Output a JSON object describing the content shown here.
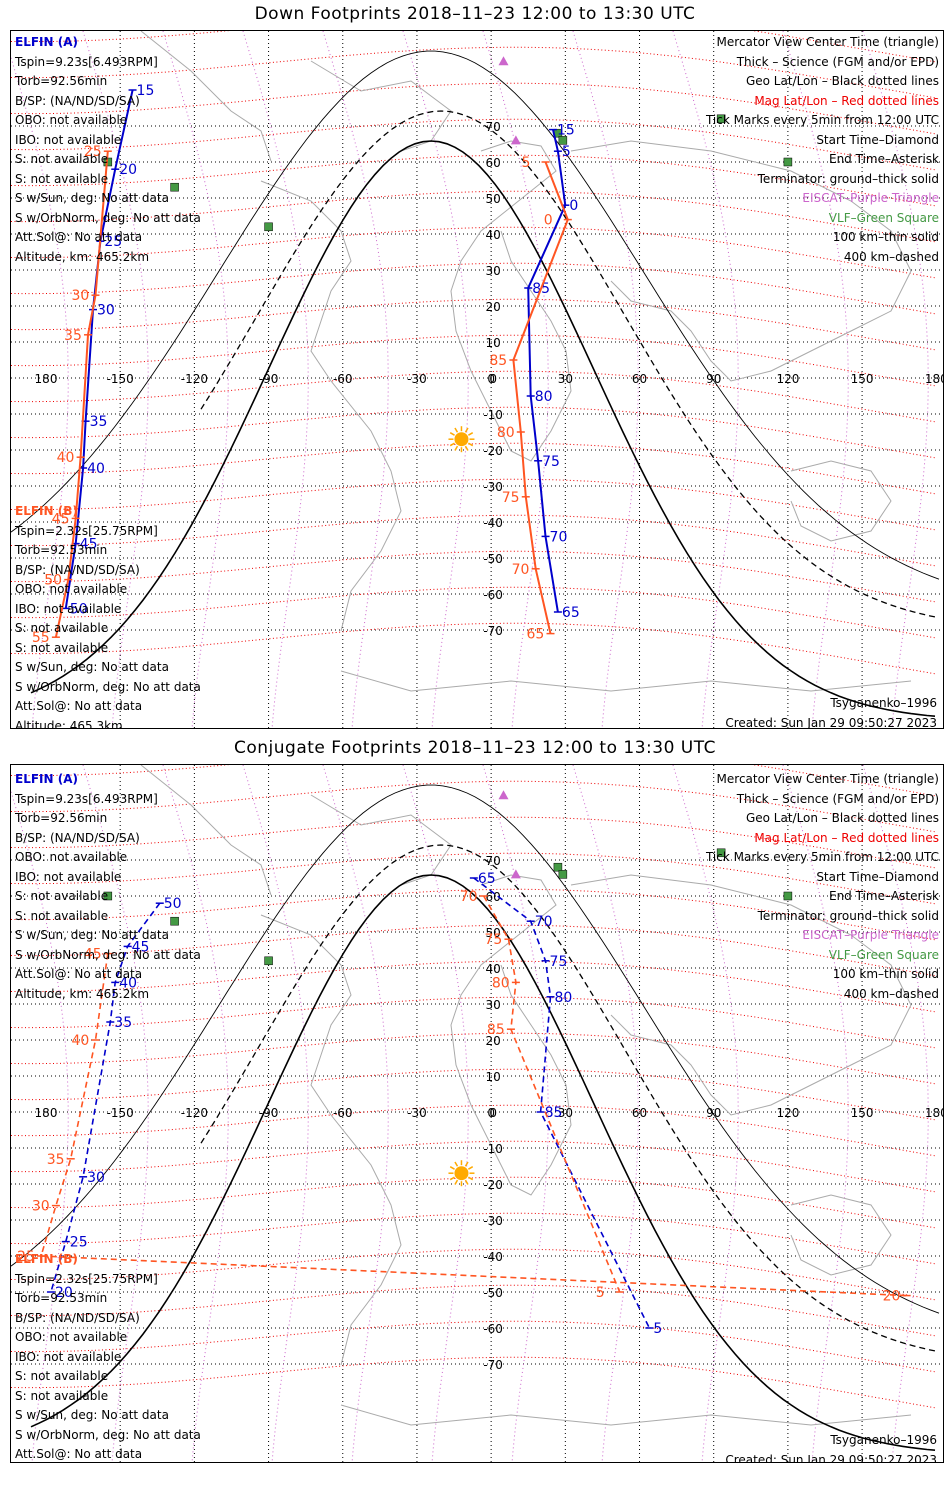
{
  "colors": {
    "elfin_a": "#0000cc",
    "elfin_b": "#ff5522",
    "mag": "#ee0000",
    "geo": "#000000",
    "purple": "#cc66cc",
    "green": "#449944",
    "sun": "#ffaa00"
  },
  "panels": [
    {
      "title": "Down Footprints 2018–11–23 12:00 to 13:30 UTC",
      "elfin_a": {
        "name": "ELFIN (A)",
        "lines": [
          "Tspin=9.23s[6.493RPM]",
          "Torb=92.56min",
          "B/SP: (NA/ND/SD/SA)",
          "OBO: not available",
          "IBO: not available",
          "S: not available",
          "S: not available",
          "S w/Sun, deg: No att data",
          "S w/OrbNorm, deg: No att data",
          "Att.Sol@: No att data",
          "Altitude, km: 465.2km"
        ]
      },
      "elfin_b": {
        "name": "ELFIN (B)",
        "lines": [
          "Tspin=2.32s[25.75RPM]",
          "Torb=92.53min",
          "B/SP: (NA/ND/SD/SA)",
          "OBO: not available",
          "IBO: not available",
          "S: not available",
          "S: not available",
          "S w/Sun, deg: No att data",
          "S w/OrbNorm, deg: No att data",
          "Att.Sol@: No att data",
          "Altitude: 465.3km"
        ]
      },
      "legend": [
        "Mercator View Center Time (triangle)",
        "Thick – Science (FGM and/or EPD)",
        "Geo Lat/Lon – Black dotted lines",
        "Mag Lat/Lon – Red dotted lines",
        "Tick Marks every 5min from 12:00 UTC",
        "Start Time–Diamond",
        "End Time–Asterisk",
        "Terminator: ground–thick solid",
        "EISCAT–Purple Triangle",
        "VLF–Green Square",
        "100 km–thin solid",
        "400 km–dashed"
      ],
      "model": "Tsyganenko–1996",
      "created": "Created: Sun Jan 29 09:50:27 2023",
      "lon_labels": [
        "180",
        "-150",
        "-120",
        "-90",
        "-60",
        "-30",
        "0",
        "30",
        "60",
        "90",
        "120",
        "150",
        "180"
      ],
      "lat_labels": [
        "70",
        "60",
        "50",
        "40",
        "30",
        "20",
        "10",
        "0",
        "-10",
        "-20",
        "-30",
        "-40",
        "-50",
        "-60",
        "-70"
      ],
      "track_a_ticks": [
        {
          "t": "15",
          "lon": -145,
          "lat": 80
        },
        {
          "t": "20",
          "lon": -152,
          "lat": 58
        },
        {
          "t": "25",
          "lon": -158,
          "lat": 38
        },
        {
          "t": "30",
          "lon": -161,
          "lat": 19
        },
        {
          "t": "35",
          "lon": -164,
          "lat": -12
        },
        {
          "t": "40",
          "lon": -165,
          "lat": -25
        },
        {
          "t": "45",
          "lon": -168,
          "lat": -46
        },
        {
          "t": "50",
          "lon": -172,
          "lat": -64
        }
      ],
      "track_b_ticks": [
        {
          "t": "25",
          "lon": -155,
          "lat": 63
        },
        {
          "t": "30",
          "lon": -160,
          "lat": 23
        },
        {
          "t": "35",
          "lon": -163,
          "lat": 12
        },
        {
          "t": "40",
          "lon": -166,
          "lat": -22
        },
        {
          "t": "45",
          "lon": -168,
          "lat": -39
        },
        {
          "t": "50",
          "lon": -171,
          "lat": -56
        },
        {
          "t": "55",
          "lon": -176,
          "lat": -72
        }
      ],
      "track_c_ticks": [
        {
          "t": "15",
          "lon": 25,
          "lat": 69
        },
        {
          "t": "5",
          "lon": 27,
          "lat": 63
        },
        {
          "t": "0",
          "lon": 30,
          "lat": 48
        },
        {
          "t": "85",
          "lon": 15,
          "lat": 25
        },
        {
          "t": "80",
          "lon": 16,
          "lat": -5
        },
        {
          "t": "75",
          "lon": 19,
          "lat": -23
        },
        {
          "t": "70",
          "lon": 22,
          "lat": -44
        },
        {
          "t": "65",
          "lon": 27,
          "lat": -65
        }
      ],
      "track_d_ticks": [
        {
          "t": "5",
          "lon": 22,
          "lat": 60
        },
        {
          "t": "0",
          "lon": 31,
          "lat": 44
        },
        {
          "t": "85",
          "lon": 9,
          "lat": 5
        },
        {
          "t": "80",
          "lon": 12,
          "lat": -15
        },
        {
          "t": "75",
          "lon": 14,
          "lat": -33
        },
        {
          "t": "70",
          "lon": 18,
          "lat": -53
        },
        {
          "t": "65",
          "lon": 24,
          "lat": -71
        }
      ]
    },
    {
      "title": "Conjugate Footprints 2018–11–23 12:00 to 13:30 UTC",
      "elfin_a": {
        "name": "ELFIN (A)",
        "lines": [
          "Tspin=9.23s[6.493RPM]",
          "Torb=92.56min",
          "B/SP: (NA/ND/SD/SA)",
          "OBO: not available",
          "IBO: not available",
          "S: not available",
          "S: not available",
          "S w/Sun, deg: No att data",
          "S w/OrbNorm, deg: No att data",
          "Att.Sol@: No att data",
          "Altitude, km: 465.2km"
        ]
      },
      "elfin_b": {
        "name": "ELFIN (B)",
        "lines": [
          "Tspin=2.32s[25.75RPM]",
          "Torb=92.53min",
          "B/SP: (NA/ND/SD/SA)",
          "OBO: not available",
          "IBO: not available",
          "S: not available",
          "S: not available",
          "S w/Sun, deg: No att data",
          "S w/OrbNorm, deg: No att data",
          "Att.Sol@: No att data",
          "Altitude: 465.3km"
        ]
      },
      "legend": [
        "Mercator View Center Time (triangle)",
        "Thick – Science (FGM and/or EPD)",
        "Geo Lat/Lon – Black dotted lines",
        "Mag Lat/Lon – Red dotted lines",
        "Tick Marks every 5min from 12:00 UTC",
        "Start Time–Diamond",
        "End Time–Asterisk",
        "Terminator: ground–thick solid",
        "EISCAT–Purple Triangle",
        "VLF–Green Square",
        "100 km–thin solid",
        "400 km–dashed"
      ],
      "model": "Tsyganenko–1996",
      "created": "Created: Sun Jan 29 09:50:27 2023",
      "lon_labels": [
        "180",
        "-150",
        "-120",
        "-90",
        "-60",
        "-30",
        "0",
        "30",
        "60",
        "90",
        "120",
        "150",
        "180"
      ],
      "lat_labels": [
        "70",
        "60",
        "50",
        "40",
        "30",
        "20",
        "10",
        "0",
        "-10",
        "-20",
        "-30",
        "-40",
        "-50",
        "-60",
        "-70"
      ],
      "track_a_ticks": [
        {
          "t": "50",
          "lon": -134,
          "lat": 58
        },
        {
          "t": "45",
          "lon": -147,
          "lat": 46
        },
        {
          "t": "40",
          "lon": -152,
          "lat": 36
        },
        {
          "t": "35",
          "lon": -154,
          "lat": 25
        },
        {
          "t": "30",
          "lon": -165,
          "lat": -18
        },
        {
          "t": "25",
          "lon": -172,
          "lat": -36
        },
        {
          "t": "20",
          "lon": -178,
          "lat": -50
        }
      ],
      "track_b_ticks": [
        {
          "t": "45",
          "lon": -155,
          "lat": 44
        },
        {
          "t": "40",
          "lon": -160,
          "lat": 20
        },
        {
          "t": "35",
          "lon": -170,
          "lat": -13
        },
        {
          "t": "30",
          "lon": -176,
          "lat": -26
        },
        {
          "t": "25",
          "lon": -182,
          "lat": -40
        },
        {
          "t": "20",
          "lon": 168,
          "lat": -51
        }
      ],
      "track_c_ticks": [
        {
          "t": "65",
          "lon": -7,
          "lat": 65
        },
        {
          "t": "70",
          "lon": 16,
          "lat": 53
        },
        {
          "t": "75",
          "lon": 22,
          "lat": 42
        },
        {
          "t": "80",
          "lon": 24,
          "lat": 32
        },
        {
          "t": "85",
          "lon": 20,
          "lat": 0
        },
        {
          "t": "5",
          "lon": 64,
          "lat": -60
        }
      ],
      "track_d_ticks": [
        {
          "t": "70",
          "lon": -3,
          "lat": 60
        },
        {
          "t": "75",
          "lon": 7,
          "lat": 48
        },
        {
          "t": "80",
          "lon": 10,
          "lat": 36
        },
        {
          "t": "85",
          "lon": 8,
          "lat": 23
        },
        {
          "t": "5",
          "lon": 52,
          "lat": -50
        }
      ]
    }
  ]
}
